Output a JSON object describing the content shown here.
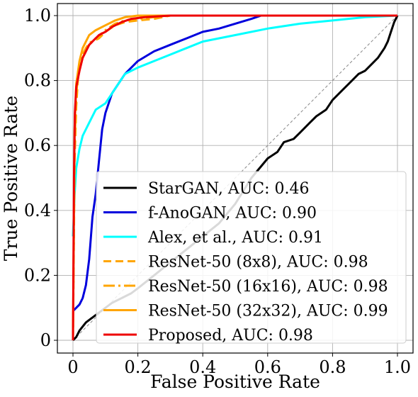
{
  "chart_data": {
    "type": "line",
    "title": "",
    "xlabel": "False Positive Rate",
    "ylabel": "True Positive Rate",
    "xlim": [
      0,
      1
    ],
    "ylim": [
      0,
      1
    ],
    "grid": true,
    "legend_position": "lower-right",
    "xticks": [
      0,
      0.2,
      0.4,
      0.6,
      0.8,
      1.0
    ],
    "xtick_labels": [
      "0",
      "0.2",
      "0.4",
      "0.6",
      "0.8",
      "1.0"
    ],
    "yticks": [
      0,
      0.2,
      0.4,
      0.6,
      0.8,
      1.0
    ],
    "ytick_labels": [
      "0",
      "0.2",
      "0.4",
      "0.6",
      "0.8",
      "1.0"
    ],
    "diagonal_reference": true,
    "series": [
      {
        "name": "StarGAN, AUC: 0.46",
        "color": "#000000",
        "dash": "solid",
        "points": [
          [
            0,
            0
          ],
          [
            0.01,
            0.01
          ],
          [
            0.02,
            0.03
          ],
          [
            0.04,
            0.055
          ],
          [
            0.06,
            0.07
          ],
          [
            0.08,
            0.085
          ],
          [
            0.1,
            0.1
          ],
          [
            0.12,
            0.115
          ],
          [
            0.15,
            0.13
          ],
          [
            0.18,
            0.145
          ],
          [
            0.2,
            0.16
          ],
          [
            0.25,
            0.2
          ],
          [
            0.3,
            0.24
          ],
          [
            0.35,
            0.28
          ],
          [
            0.4,
            0.32
          ],
          [
            0.45,
            0.36
          ],
          [
            0.5,
            0.42
          ],
          [
            0.55,
            0.5
          ],
          [
            0.6,
            0.56
          ],
          [
            0.63,
            0.58
          ],
          [
            0.65,
            0.61
          ],
          [
            0.68,
            0.62
          ],
          [
            0.7,
            0.64
          ],
          [
            0.73,
            0.67
          ],
          [
            0.75,
            0.69
          ],
          [
            0.78,
            0.71
          ],
          [
            0.8,
            0.74
          ],
          [
            0.83,
            0.77
          ],
          [
            0.85,
            0.79
          ],
          [
            0.88,
            0.82
          ],
          [
            0.9,
            0.83
          ],
          [
            0.92,
            0.85
          ],
          [
            0.94,
            0.87
          ],
          [
            0.96,
            0.9
          ],
          [
            0.97,
            0.92
          ],
          [
            0.98,
            0.95
          ],
          [
            0.99,
            0.98
          ],
          [
            1.0,
            1.0
          ]
        ]
      },
      {
        "name": "f-AnoGAN, AUC: 0.90",
        "color": "#0000dd",
        "dash": "solid",
        "points": [
          [
            0,
            0.09
          ],
          [
            0.01,
            0.1
          ],
          [
            0.02,
            0.11
          ],
          [
            0.03,
            0.13
          ],
          [
            0.04,
            0.17
          ],
          [
            0.05,
            0.25
          ],
          [
            0.06,
            0.38
          ],
          [
            0.07,
            0.45
          ],
          [
            0.08,
            0.55
          ],
          [
            0.09,
            0.65
          ],
          [
            0.1,
            0.7
          ],
          [
            0.11,
            0.73
          ],
          [
            0.12,
            0.76
          ],
          [
            0.14,
            0.79
          ],
          [
            0.16,
            0.82
          ],
          [
            0.18,
            0.84
          ],
          [
            0.2,
            0.86
          ],
          [
            0.25,
            0.89
          ],
          [
            0.3,
            0.91
          ],
          [
            0.35,
            0.93
          ],
          [
            0.4,
            0.95
          ],
          [
            0.45,
            0.96
          ],
          [
            0.5,
            0.975
          ],
          [
            0.55,
            0.99
          ],
          [
            0.58,
            1.0
          ],
          [
            1.0,
            1.0
          ]
        ]
      },
      {
        "name": "Alex, et al., AUC: 0.91",
        "color": "#00ffff",
        "dash": "solid",
        "points": [
          [
            0,
            0.32
          ],
          [
            0.005,
            0.45
          ],
          [
            0.01,
            0.53
          ],
          [
            0.02,
            0.59
          ],
          [
            0.03,
            0.63
          ],
          [
            0.05,
            0.67
          ],
          [
            0.07,
            0.71
          ],
          [
            0.1,
            0.73
          ],
          [
            0.12,
            0.76
          ],
          [
            0.14,
            0.79
          ],
          [
            0.16,
            0.82
          ],
          [
            0.2,
            0.84
          ],
          [
            0.25,
            0.86
          ],
          [
            0.3,
            0.88
          ],
          [
            0.35,
            0.9
          ],
          [
            0.4,
            0.92
          ],
          [
            0.5,
            0.94
          ],
          [
            0.6,
            0.96
          ],
          [
            0.7,
            0.975
          ],
          [
            0.8,
            0.985
          ],
          [
            0.9,
            0.995
          ],
          [
            1.0,
            1.0
          ]
        ]
      },
      {
        "name": "ResNet-50 (8x8), AUC: 0.98",
        "color": "#ffa500",
        "dash": "dashed",
        "points": [
          [
            0,
            0
          ],
          [
            0.005,
            0.55
          ],
          [
            0.01,
            0.72
          ],
          [
            0.015,
            0.8
          ],
          [
            0.02,
            0.84
          ],
          [
            0.03,
            0.87
          ],
          [
            0.04,
            0.89
          ],
          [
            0.05,
            0.91
          ],
          [
            0.06,
            0.92
          ],
          [
            0.08,
            0.93
          ],
          [
            0.1,
            0.95
          ],
          [
            0.13,
            0.97
          ],
          [
            0.16,
            0.98
          ],
          [
            0.2,
            0.985
          ],
          [
            0.25,
            0.99
          ],
          [
            0.3,
            1.0
          ],
          [
            1.0,
            1.0
          ]
        ]
      },
      {
        "name": "ResNet-50 (16x16), AUC: 0.98",
        "color": "#ffa500",
        "dash": "dashdot",
        "points": [
          [
            0,
            0
          ],
          [
            0.005,
            0.6
          ],
          [
            0.01,
            0.75
          ],
          [
            0.015,
            0.82
          ],
          [
            0.02,
            0.85
          ],
          [
            0.03,
            0.88
          ],
          [
            0.04,
            0.9
          ],
          [
            0.05,
            0.915
          ],
          [
            0.07,
            0.93
          ],
          [
            0.1,
            0.955
          ],
          [
            0.13,
            0.975
          ],
          [
            0.16,
            0.985
          ],
          [
            0.2,
            0.99
          ],
          [
            0.25,
            0.995
          ],
          [
            0.3,
            1.0
          ],
          [
            1.0,
            1.0
          ]
        ]
      },
      {
        "name": "ResNet-50 (32x32), AUC: 0.99",
        "color": "#ffa500",
        "dash": "solid",
        "points": [
          [
            0,
            0
          ],
          [
            0.005,
            0.65
          ],
          [
            0.01,
            0.79
          ],
          [
            0.02,
            0.86
          ],
          [
            0.03,
            0.9
          ],
          [
            0.04,
            0.92
          ],
          [
            0.05,
            0.94
          ],
          [
            0.07,
            0.955
          ],
          [
            0.1,
            0.97
          ],
          [
            0.13,
            0.985
          ],
          [
            0.16,
            0.995
          ],
          [
            0.2,
            1.0
          ],
          [
            1.0,
            1.0
          ]
        ]
      },
      {
        "name": "Proposed, AUC: 0.98",
        "color": "#ee0000",
        "dash": "solid",
        "points": [
          [
            0,
            0
          ],
          [
            0.003,
            0.5
          ],
          [
            0.006,
            0.7
          ],
          [
            0.01,
            0.78
          ],
          [
            0.02,
            0.83
          ],
          [
            0.03,
            0.87
          ],
          [
            0.04,
            0.89
          ],
          [
            0.05,
            0.91
          ],
          [
            0.06,
            0.92
          ],
          [
            0.08,
            0.94
          ],
          [
            0.1,
            0.95
          ],
          [
            0.12,
            0.965
          ],
          [
            0.15,
            0.98
          ],
          [
            0.18,
            0.99
          ],
          [
            0.22,
            0.995
          ],
          [
            0.3,
            1.0
          ],
          [
            1.0,
            1.0
          ]
        ]
      }
    ]
  }
}
